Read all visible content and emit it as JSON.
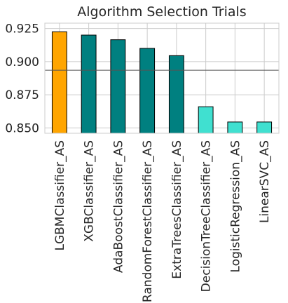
{
  "chart_data": {
    "type": "bar",
    "title": "Algorithm Selection Trials",
    "xlabel": "",
    "ylabel": "",
    "categories": [
      "LGBMClassifier_AS",
      "XGBClassifier_AS",
      "AdaBoostClassifier_AS",
      "RandomForestClassifier_AS",
      "ExtraTreesClassifier_AS",
      "DecisionTreeClassifier_AS",
      "LogisticRegression_AS",
      "LinearSVC_AS"
    ],
    "values": [
      0.9225,
      0.92,
      0.9165,
      0.91,
      0.9045,
      0.866,
      0.8545,
      0.8545
    ],
    "bar_colors": [
      "#FFA500",
      "#008080",
      "#008080",
      "#008080",
      "#008080",
      "#40E0D0",
      "#40E0D0",
      "#40E0D0"
    ],
    "reference_line": {
      "value": 0.8935,
      "color": "#555555"
    },
    "ylim": [
      0.846,
      0.929
    ],
    "yticks": [
      0.85,
      0.875,
      0.9,
      0.925
    ],
    "ytick_labels": [
      "0.850",
      "0.875",
      "0.900",
      "0.925"
    ],
    "grid": true,
    "legend": "none"
  }
}
